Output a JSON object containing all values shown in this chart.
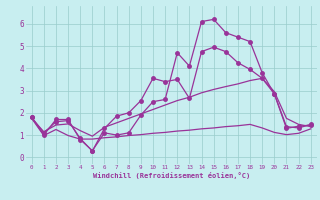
{
  "xlabel": "Windchill (Refroidissement éolien,°C)",
  "background_color": "#c8eef0",
  "line_color": "#993399",
  "grid_color": "#99cccc",
  "x_ticks": [
    0,
    1,
    2,
    3,
    4,
    5,
    6,
    7,
    8,
    9,
    10,
    11,
    12,
    13,
    14,
    15,
    16,
    17,
    18,
    19,
    20,
    21,
    22,
    23
  ],
  "y_ticks": [
    0,
    1,
    2,
    3,
    4,
    5,
    6
  ],
  "ylim": [
    -0.3,
    6.8
  ],
  "xlim": [
    -0.5,
    23.5
  ],
  "line1_x": [
    0,
    1,
    2,
    3,
    4,
    5,
    6,
    7,
    8,
    9,
    10,
    11,
    12,
    13,
    14,
    15,
    16,
    17,
    18,
    19,
    20,
    21,
    22,
    23
  ],
  "line1_y": [
    1.8,
    1.0,
    1.7,
    1.7,
    0.8,
    0.3,
    1.1,
    1.0,
    1.1,
    1.9,
    2.5,
    2.6,
    4.7,
    4.1,
    6.1,
    6.2,
    5.6,
    5.4,
    5.2,
    3.8,
    2.85,
    1.3,
    1.4,
    1.45
  ],
  "line2_x": [
    0,
    1,
    2,
    3,
    4,
    5,
    6,
    7,
    8,
    9,
    10,
    11,
    12,
    13,
    14,
    15,
    16,
    17,
    18,
    19,
    20,
    21,
    22,
    23
  ],
  "line2_y": [
    1.8,
    1.1,
    1.6,
    1.65,
    0.85,
    0.28,
    1.3,
    1.85,
    2.0,
    2.55,
    3.55,
    3.4,
    3.5,
    2.65,
    4.75,
    4.95,
    4.75,
    4.25,
    3.95,
    3.55,
    2.85,
    1.38,
    1.32,
    1.48
  ],
  "line3_x": [
    0,
    1,
    2,
    3,
    4,
    5,
    6,
    7,
    8,
    9,
    10,
    11,
    12,
    13,
    14,
    15,
    16,
    17,
    18,
    19,
    20,
    21,
    22,
    23
  ],
  "line3_y": [
    1.75,
    1.15,
    1.45,
    1.5,
    1.2,
    0.95,
    1.35,
    1.55,
    1.75,
    1.95,
    2.15,
    2.35,
    2.55,
    2.7,
    2.9,
    3.05,
    3.18,
    3.3,
    3.45,
    3.55,
    2.95,
    1.75,
    1.48,
    1.38
  ],
  "line4_x": [
    0,
    1,
    2,
    3,
    4,
    5,
    6,
    7,
    8,
    9,
    10,
    11,
    12,
    13,
    14,
    15,
    16,
    17,
    18,
    19,
    20,
    21,
    22,
    23
  ],
  "line4_y": [
    1.75,
    0.98,
    1.25,
    0.98,
    0.82,
    0.82,
    0.88,
    0.92,
    0.98,
    1.02,
    1.08,
    1.12,
    1.18,
    1.22,
    1.28,
    1.32,
    1.38,
    1.42,
    1.48,
    1.32,
    1.12,
    1.02,
    1.08,
    1.28
  ],
  "marker_size": 2.5,
  "linewidth": 0.9
}
